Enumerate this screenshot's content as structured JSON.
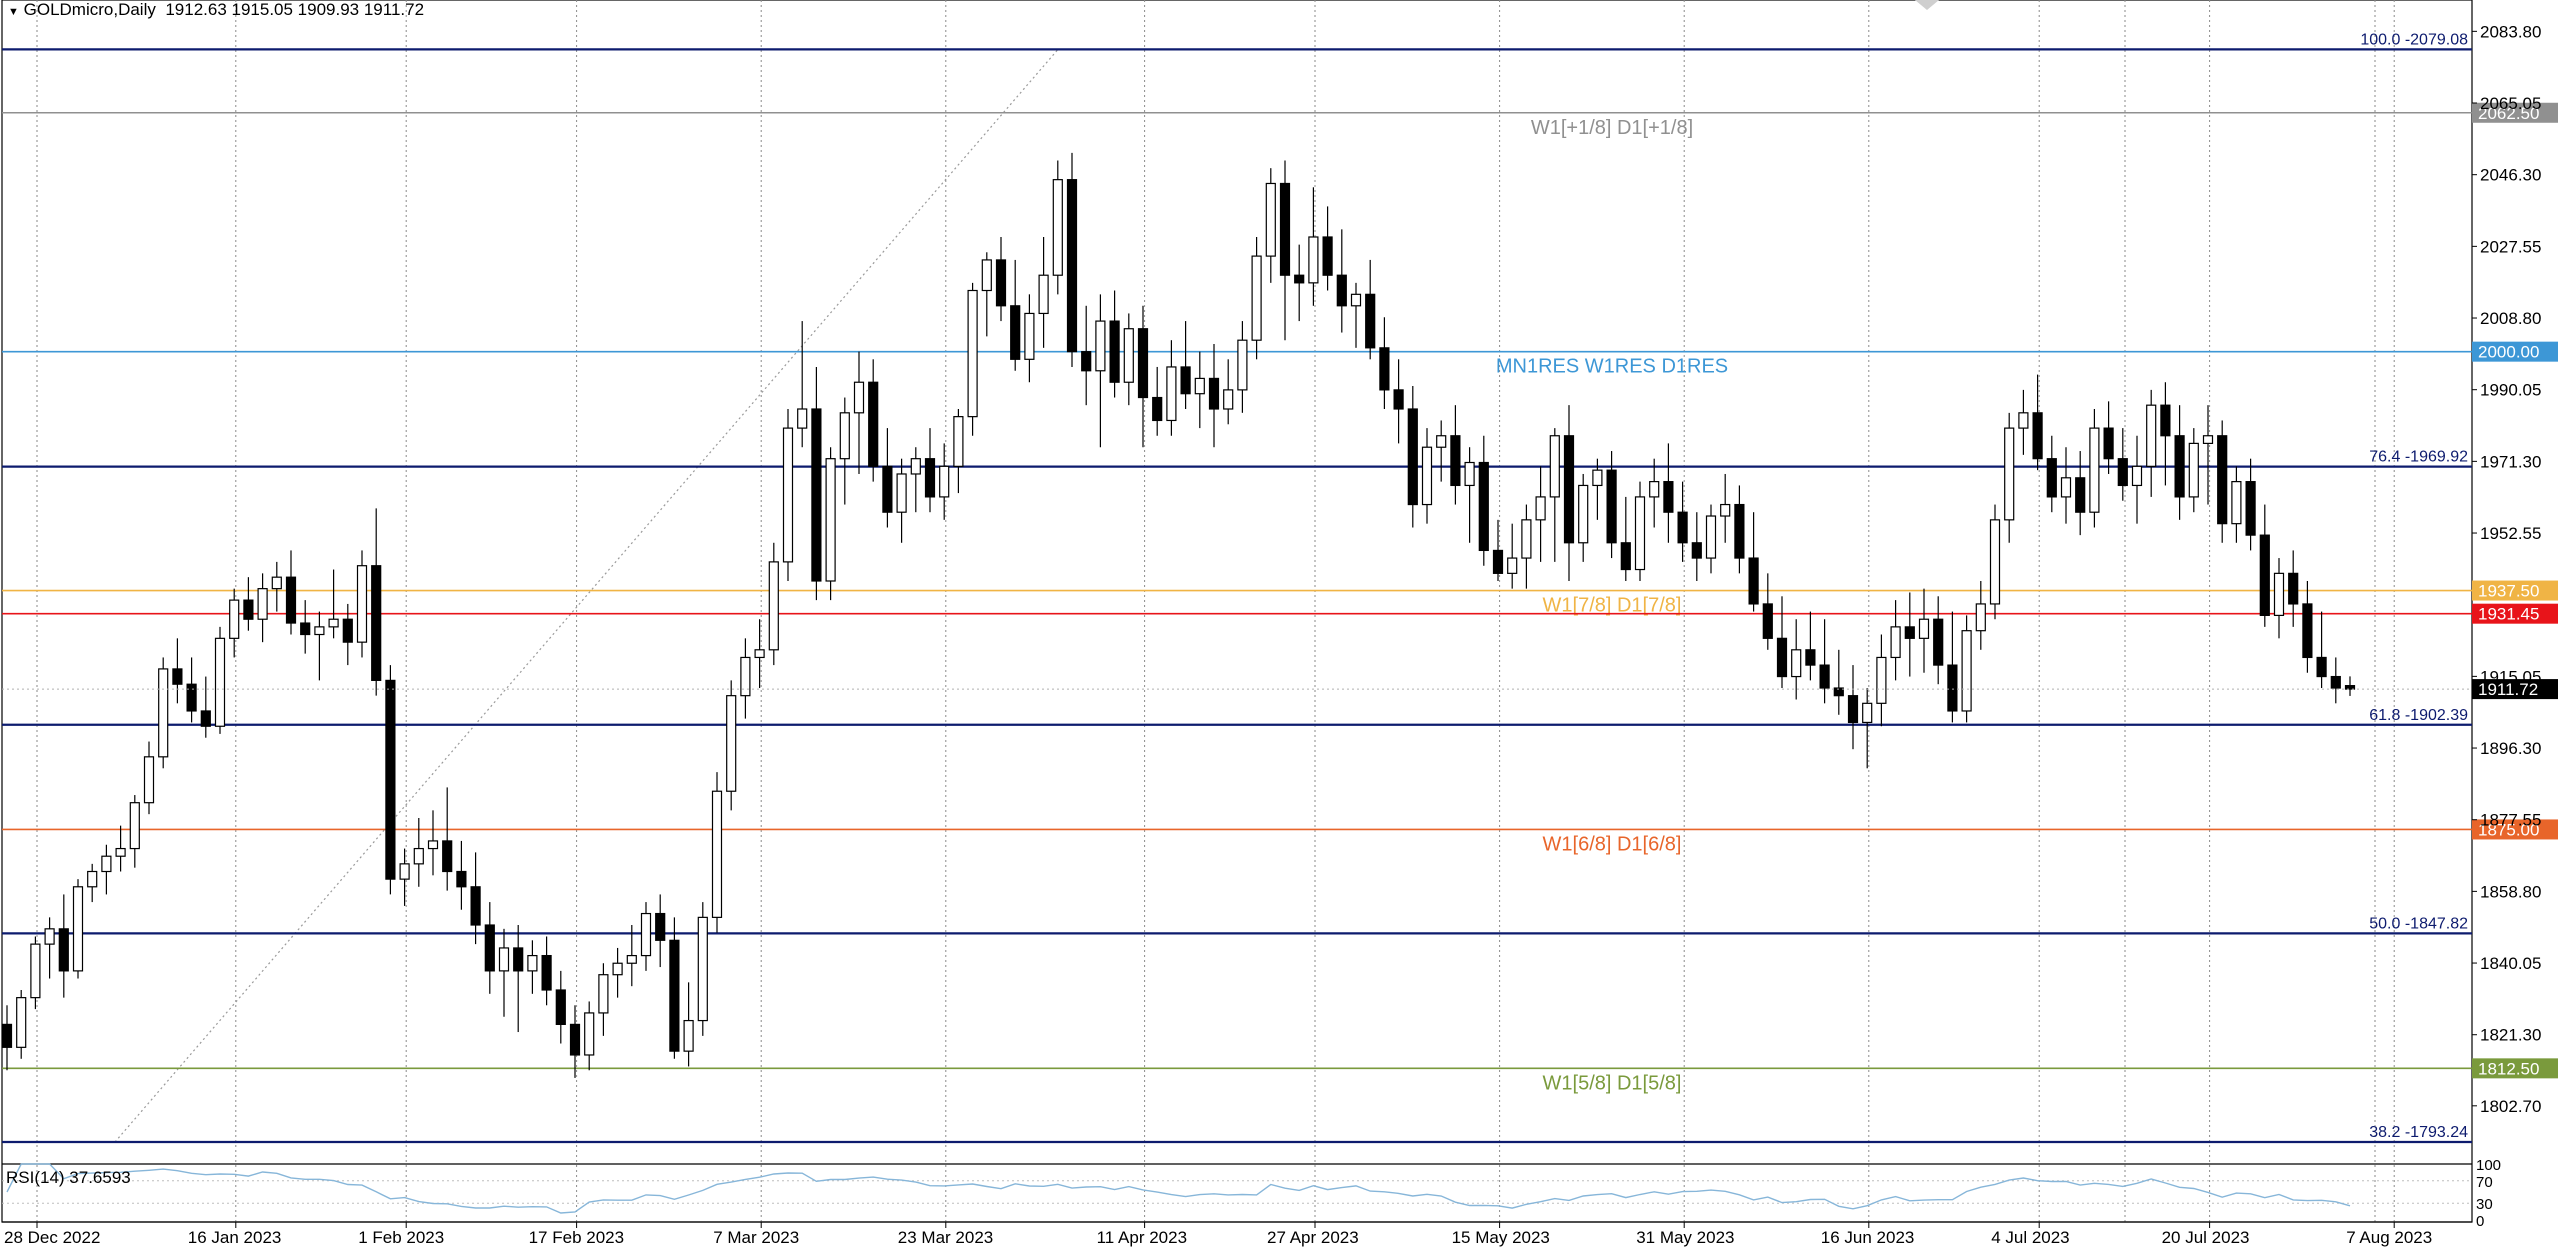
{
  "header": {
    "symbol_line": "GOLDmicro,Daily",
    "ohlc": "1912.63 1915.05 1909.93 1911.72"
  },
  "rsi": {
    "label": "RSI(14) 37.6593",
    "levels": [
      100,
      70,
      30,
      0
    ],
    "level_labels": [
      "100",
      "70",
      "30",
      "0"
    ],
    "line_color": "#87b6d9"
  },
  "chart_data": {
    "type": "candlestick",
    "y_range": [
      1788,
      2092
    ],
    "price_ticks": [
      "2083.80",
      "2065.05",
      "2046.30",
      "2027.55",
      "2008.80",
      "1990.05",
      "1971.30",
      "1952.55",
      "1915.05",
      "1896.30",
      "1877.55",
      "1858.80",
      "1840.05",
      "1821.30",
      "1802.70"
    ],
    "price_tick_values": [
      2083.8,
      2065.05,
      2046.3,
      2027.55,
      2008.8,
      1990.05,
      1971.3,
      1952.55,
      1915.05,
      1896.3,
      1877.55,
      1858.8,
      1840.05,
      1821.3,
      1802.7
    ],
    "date_labels": [
      "28 Dec 2022",
      "16 Jan 2023",
      "1 Feb 2023",
      "17 Feb 2023",
      "7 Mar 2023",
      "23 Mar 2023",
      "11 Apr 2023",
      "27 Apr 2023",
      "15 May 2023",
      "31 May 2023",
      "16 Jun 2023",
      "4 Jul 2023",
      "20 Jul 2023",
      "7 Aug 2023"
    ],
    "date_label_bars": [
      0,
      14,
      26,
      38,
      51,
      64,
      78,
      90,
      103,
      116,
      129,
      141,
      153,
      166
    ],
    "current_price": "1911.72",
    "current_price_value": 1911.72,
    "levels": [
      {
        "price": 2079.08,
        "color": "#0d1b6e",
        "label": "100.0 -2079.08",
        "tag": ""
      },
      {
        "price": 2062.5,
        "color": "#909090",
        "label": "W1[+1/8] D1[+1/8]",
        "tag": "2062.50"
      },
      {
        "price": 2000.0,
        "color": "#3d97d6",
        "label": "MN1RES W1RES D1RES",
        "tag": "2000.00"
      },
      {
        "price": 1969.92,
        "color": "#0d1b6e",
        "label": "76.4 -1969.92",
        "tag": ""
      },
      {
        "price": 1937.5,
        "color": "#f0b445",
        "label": "W1[7/8] D1[7/8]",
        "tag": "1937.50"
      },
      {
        "price": 1931.45,
        "color": "#e8141a",
        "label": "",
        "tag": "1931.45"
      },
      {
        "price": 1902.39,
        "color": "#0d1b6e",
        "label": "61.8 -1902.39",
        "tag": ""
      },
      {
        "price": 1875.0,
        "color": "#e8652a",
        "label": "W1[6/8] D1[6/8]",
        "tag": "1875.00"
      },
      {
        "price": 1847.82,
        "color": "#0d1b6e",
        "label": "50.0 -1847.82",
        "tag": ""
      },
      {
        "price": 1812.5,
        "color": "#7a9a3c",
        "label": "W1[5/8] D1[5/8]",
        "tag": "1812.50"
      },
      {
        "price": 1793.24,
        "color": "#0d1b6e",
        "label": "38.2 -1793.24",
        "tag": ""
      }
    ],
    "candles": [
      [
        1824,
        1829,
        1812,
        1818
      ],
      [
        1818,
        1833,
        1815,
        1831
      ],
      [
        1831,
        1847,
        1828,
        1845
      ],
      [
        1845,
        1852,
        1836,
        1849
      ],
      [
        1849,
        1858,
        1831,
        1838
      ],
      [
        1838,
        1862,
        1836,
        1860
      ],
      [
        1860,
        1866,
        1856,
        1864
      ],
      [
        1864,
        1871,
        1858,
        1868
      ],
      [
        1868,
        1876,
        1864,
        1870
      ],
      [
        1870,
        1884,
        1865,
        1882
      ],
      [
        1882,
        1898,
        1879,
        1894
      ],
      [
        1894,
        1920,
        1891,
        1917
      ],
      [
        1917,
        1925,
        1908,
        1913
      ],
      [
        1913,
        1920,
        1903,
        1906
      ],
      [
        1906,
        1915,
        1899,
        1902
      ],
      [
        1902,
        1928,
        1900,
        1925
      ],
      [
        1925,
        1938,
        1920,
        1935
      ],
      [
        1935,
        1941,
        1927,
        1930
      ],
      [
        1930,
        1942,
        1924,
        1938
      ],
      [
        1938,
        1945,
        1932,
        1941
      ],
      [
        1941,
        1948,
        1926,
        1929
      ],
      [
        1929,
        1935,
        1921,
        1926
      ],
      [
        1926,
        1932,
        1914,
        1928
      ],
      [
        1928,
        1943,
        1925,
        1930
      ],
      [
        1930,
        1934,
        1918,
        1924
      ],
      [
        1924,
        1948,
        1920,
        1944
      ],
      [
        1944,
        1959,
        1910,
        1914
      ],
      [
        1914,
        1918,
        1858,
        1862
      ],
      [
        1862,
        1870,
        1855,
        1866
      ],
      [
        1866,
        1878,
        1860,
        1870
      ],
      [
        1870,
        1880,
        1863,
        1872
      ],
      [
        1872,
        1886,
        1859,
        1864
      ],
      [
        1864,
        1872,
        1854,
        1860
      ],
      [
        1860,
        1869,
        1845,
        1850
      ],
      [
        1850,
        1856,
        1832,
        1838
      ],
      [
        1838,
        1849,
        1826,
        1844
      ],
      [
        1844,
        1850,
        1822,
        1838
      ],
      [
        1838,
        1846,
        1832,
        1842
      ],
      [
        1842,
        1847,
        1829,
        1833
      ],
      [
        1833,
        1838,
        1819,
        1824
      ],
      [
        1824,
        1829,
        1810,
        1816
      ],
      [
        1816,
        1830,
        1812,
        1827
      ],
      [
        1827,
        1840,
        1821,
        1837
      ],
      [
        1837,
        1844,
        1831,
        1840
      ],
      [
        1840,
        1850,
        1834,
        1842
      ],
      [
        1842,
        1856,
        1838,
        1853
      ],
      [
        1853,
        1858,
        1839,
        1846
      ],
      [
        1846,
        1852,
        1815,
        1817
      ],
      [
        1817,
        1835,
        1813,
        1825
      ],
      [
        1825,
        1856,
        1821,
        1852
      ],
      [
        1852,
        1890,
        1848,
        1885
      ],
      [
        1885,
        1914,
        1880,
        1910
      ],
      [
        1910,
        1925,
        1904,
        1920
      ],
      [
        1920,
        1930,
        1912,
        1922
      ],
      [
        1922,
        1950,
        1918,
        1945
      ],
      [
        1945,
        1985,
        1940,
        1980
      ],
      [
        1980,
        2008,
        1975,
        1985
      ],
      [
        1985,
        1996,
        1935,
        1940
      ],
      [
        1940,
        1975,
        1935,
        1972
      ],
      [
        1972,
        1988,
        1960,
        1984
      ],
      [
        1984,
        2000,
        1968,
        1992
      ],
      [
        1992,
        1998,
        1966,
        1970
      ],
      [
        1970,
        1980,
        1954,
        1958
      ],
      [
        1958,
        1972,
        1950,
        1968
      ],
      [
        1968,
        1975,
        1958,
        1972
      ],
      [
        1972,
        1980,
        1958,
        1962
      ],
      [
        1962,
        1976,
        1956,
        1970
      ],
      [
        1970,
        1985,
        1963,
        1983
      ],
      [
        1983,
        2018,
        1978,
        2016
      ],
      [
        2016,
        2026,
        2004,
        2024
      ],
      [
        2024,
        2030,
        2008,
        2012
      ],
      [
        2012,
        2024,
        1995,
        1998
      ],
      [
        1998,
        2015,
        1992,
        2010
      ],
      [
        2010,
        2030,
        2001,
        2020
      ],
      [
        2020,
        2050,
        2015,
        2045
      ],
      [
        2045,
        2052,
        1996,
        2000
      ],
      [
        2000,
        2012,
        1986,
        1995
      ],
      [
        1995,
        2015,
        1975,
        2008
      ],
      [
        2008,
        2016,
        1988,
        1992
      ],
      [
        1992,
        2010,
        1986,
        2006
      ],
      [
        2006,
        2012,
        1975,
        1988
      ],
      [
        1988,
        1996,
        1978,
        1982
      ],
      [
        1982,
        2003,
        1978,
        1996
      ],
      [
        1996,
        2008,
        1985,
        1989
      ],
      [
        1989,
        2000,
        1980,
        1993
      ],
      [
        1993,
        2002,
        1975,
        1985
      ],
      [
        1985,
        1998,
        1981,
        1990
      ],
      [
        1990,
        2008,
        1984,
        2003
      ],
      [
        2003,
        2030,
        1998,
        2025
      ],
      [
        2025,
        2048,
        2018,
        2044
      ],
      [
        2044,
        2050,
        2003,
        2020
      ],
      [
        2020,
        2028,
        2008,
        2018
      ],
      [
        2018,
        2043,
        2012,
        2030
      ],
      [
        2030,
        2038,
        2016,
        2020
      ],
      [
        2020,
        2032,
        2005,
        2012
      ],
      [
        2012,
        2018,
        2001,
        2015
      ],
      [
        2015,
        2024,
        1998,
        2001
      ],
      [
        2001,
        2009,
        1985,
        1990
      ],
      [
        1990,
        1998,
        1976,
        1985
      ],
      [
        1985,
        1991,
        1954,
        1960
      ],
      [
        1960,
        1980,
        1955,
        1975
      ],
      [
        1975,
        1982,
        1966,
        1978
      ],
      [
        1978,
        1986,
        1960,
        1965
      ],
      [
        1965,
        1975,
        1950,
        1971
      ],
      [
        1971,
        1978,
        1944,
        1948
      ],
      [
        1948,
        1956,
        1940,
        1942
      ],
      [
        1942,
        1955,
        1938,
        1946
      ],
      [
        1946,
        1960,
        1938,
        1956
      ],
      [
        1956,
        1970,
        1945,
        1962
      ],
      [
        1962,
        1980,
        1945,
        1978
      ],
      [
        1978,
        1986,
        1940,
        1950
      ],
      [
        1950,
        1968,
        1945,
        1965
      ],
      [
        1965,
        1972,
        1956,
        1969
      ],
      [
        1969,
        1974,
        1946,
        1950
      ],
      [
        1950,
        1962,
        1940,
        1943
      ],
      [
        1943,
        1966,
        1940,
        1962
      ],
      [
        1962,
        1972,
        1954,
        1966
      ],
      [
        1966,
        1976,
        1950,
        1958
      ],
      [
        1958,
        1966,
        1945,
        1950
      ],
      [
        1950,
        1958,
        1940,
        1946
      ],
      [
        1946,
        1960,
        1942,
        1957
      ],
      [
        1957,
        1968,
        1950,
        1960
      ],
      [
        1960,
        1965,
        1942,
        1946
      ],
      [
        1946,
        1958,
        1932,
        1934
      ],
      [
        1934,
        1942,
        1922,
        1925
      ],
      [
        1925,
        1936,
        1912,
        1915
      ],
      [
        1915,
        1930,
        1909,
        1922
      ],
      [
        1922,
        1932,
        1914,
        1918
      ],
      [
        1918,
        1930,
        1908,
        1912
      ],
      [
        1912,
        1922,
        1905,
        1910
      ],
      [
        1910,
        1918,
        1896,
        1903
      ],
      [
        1903,
        1912,
        1891,
        1908
      ],
      [
        1908,
        1926,
        1902,
        1920
      ],
      [
        1920,
        1935,
        1914,
        1928
      ],
      [
        1928,
        1937,
        1915,
        1925
      ],
      [
        1925,
        1938,
        1916,
        1930
      ],
      [
        1930,
        1936,
        1913,
        1918
      ],
      [
        1918,
        1932,
        1903,
        1906
      ],
      [
        1906,
        1931,
        1903,
        1927
      ],
      [
        1927,
        1940,
        1922,
        1934
      ],
      [
        1934,
        1960,
        1930,
        1956
      ],
      [
        1956,
        1984,
        1950,
        1980
      ],
      [
        1980,
        1990,
        1973,
        1984
      ],
      [
        1984,
        1994,
        1969,
        1972
      ],
      [
        1972,
        1978,
        1958,
        1962
      ],
      [
        1962,
        1975,
        1955,
        1967
      ],
      [
        1967,
        1974,
        1952,
        1958
      ],
      [
        1958,
        1985,
        1954,
        1980
      ],
      [
        1980,
        1987,
        1968,
        1972
      ],
      [
        1972,
        1980,
        1961,
        1965
      ],
      [
        1965,
        1978,
        1955,
        1970
      ],
      [
        1970,
        1990,
        1962,
        1986
      ],
      [
        1986,
        1992,
        1965,
        1978
      ],
      [
        1978,
        1986,
        1956,
        1962
      ],
      [
        1962,
        1980,
        1958,
        1976
      ],
      [
        1976,
        1986,
        1960,
        1978
      ],
      [
        1978,
        1982,
        1950,
        1955
      ],
      [
        1955,
        1970,
        1950,
        1966
      ],
      [
        1966,
        1972,
        1948,
        1952
      ],
      [
        1952,
        1960,
        1928,
        1931
      ],
      [
        1931,
        1946,
        1925,
        1942
      ],
      [
        1942,
        1948,
        1928,
        1934
      ],
      [
        1934,
        1940,
        1916,
        1920
      ],
      [
        1920,
        1932,
        1912,
        1915
      ],
      [
        1915,
        1920,
        1908,
        1912
      ],
      [
        1912.63,
        1915.05,
        1909.93,
        1911.72
      ]
    ]
  }
}
